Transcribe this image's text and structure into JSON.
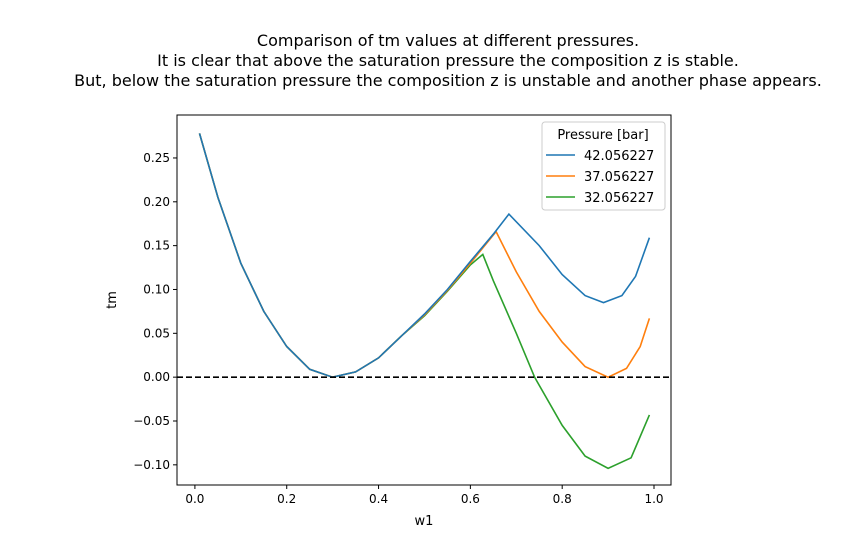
{
  "chart_data": {
    "type": "line",
    "title": [
      "Comparison of tm values at different pressures.",
      "It is clear that above the saturation pressure the composition z is stable.",
      "But, below the saturation pressure the composition z is unstable and another phase appears."
    ],
    "xlabel": "w1",
    "ylabel": "tm",
    "xlim": [
      -0.039,
      1.037
    ],
    "ylim": [
      -0.123,
      0.299
    ],
    "xticks": [
      0.0,
      0.2,
      0.4,
      0.6,
      0.8,
      1.0
    ],
    "xtick_labels": [
      "0.0",
      "0.2",
      "0.4",
      "0.6",
      "0.8",
      "1.0"
    ],
    "yticks": [
      -0.1,
      -0.05,
      0.0,
      0.05,
      0.1,
      0.15,
      0.2,
      0.25
    ],
    "ytick_labels": [
      "−0.10",
      "−0.05",
      "0.00",
      "0.05",
      "0.10",
      "0.15",
      "0.20",
      "0.25"
    ],
    "grid": false,
    "legend": {
      "title": "Pressure [bar]",
      "placement": "top-right"
    },
    "reference_line": {
      "y": 0.0,
      "style": "dashed",
      "color": "#000000"
    },
    "series": [
      {
        "name": "42.056227",
        "color": "#1f77b4",
        "x": [
          0.01,
          0.05,
          0.1,
          0.15,
          0.2,
          0.25,
          0.3,
          0.35,
          0.4,
          0.45,
          0.5,
          0.55,
          0.6,
          0.65,
          0.684,
          0.75,
          0.8,
          0.85,
          0.89,
          0.93,
          0.96,
          0.99
        ],
        "y": [
          0.278,
          0.205,
          0.13,
          0.075,
          0.035,
          0.009,
          0.0,
          0.006,
          0.022,
          0.047,
          0.072,
          0.1,
          0.132,
          0.163,
          0.186,
          0.15,
          0.117,
          0.093,
          0.085,
          0.093,
          0.115,
          0.159
        ]
      },
      {
        "name": "37.056227",
        "color": "#ff7f0e",
        "x": [
          0.01,
          0.05,
          0.1,
          0.15,
          0.2,
          0.25,
          0.3,
          0.35,
          0.4,
          0.45,
          0.5,
          0.55,
          0.6,
          0.656,
          0.7,
          0.75,
          0.8,
          0.85,
          0.9,
          0.94,
          0.97,
          0.99
        ],
        "y": [
          0.278,
          0.205,
          0.13,
          0.075,
          0.035,
          0.009,
          0.0,
          0.006,
          0.022,
          0.047,
          0.071,
          0.099,
          0.13,
          0.166,
          0.12,
          0.075,
          0.04,
          0.012,
          0.0,
          0.01,
          0.035,
          0.067
        ]
      },
      {
        "name": "32.056227",
        "color": "#2ca02c",
        "x": [
          0.01,
          0.05,
          0.1,
          0.15,
          0.2,
          0.25,
          0.3,
          0.35,
          0.4,
          0.45,
          0.5,
          0.55,
          0.6,
          0.627,
          0.65,
          0.7,
          0.74,
          0.8,
          0.85,
          0.9,
          0.95,
          0.99
        ],
        "y": [
          0.278,
          0.205,
          0.13,
          0.075,
          0.035,
          0.009,
          0.0,
          0.006,
          0.022,
          0.047,
          0.07,
          0.098,
          0.128,
          0.14,
          0.11,
          0.05,
          0.0,
          -0.055,
          -0.09,
          -0.104,
          -0.092,
          -0.043
        ]
      }
    ]
  }
}
